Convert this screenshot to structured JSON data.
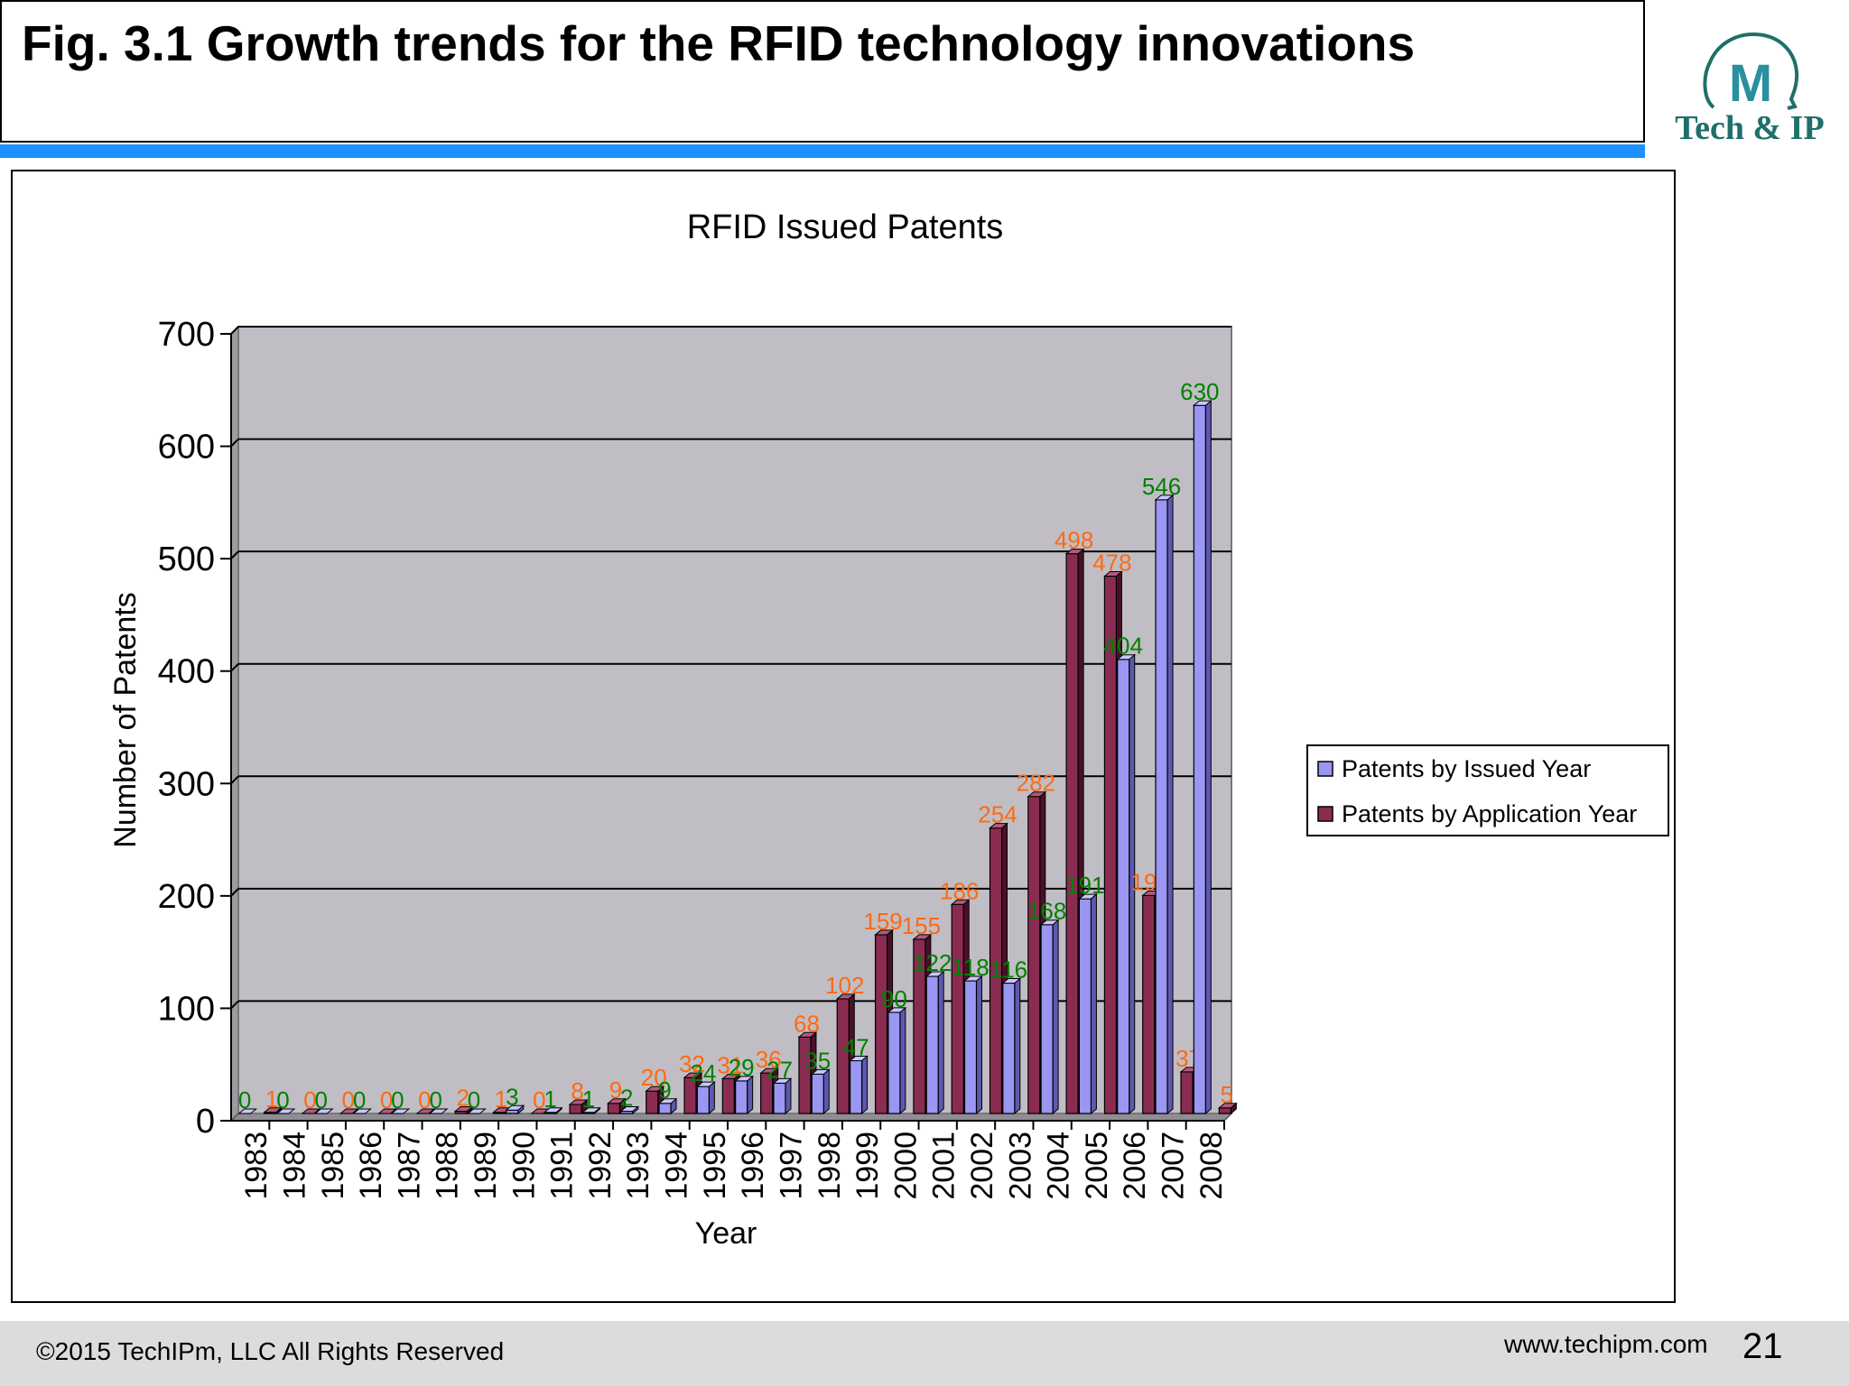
{
  "page": {
    "title": "Fig. 3.1 Growth trends for the RFID technology innovations",
    "logo_text": "Tech & IP",
    "logo_glyph": "M",
    "copyright": "©2015 TechIPm, LLC All Rights Reserved",
    "website": "www.techipm.com",
    "page_number": "21",
    "colors": {
      "accent_bar": "#1e90ff",
      "footer_bg": "#dcdcdc",
      "logo": "#1f6f6a",
      "plot_bg": "#c0bec4",
      "series_issued": "#9a96f2",
      "series_application": "#8a2c52",
      "label_issued": "#008000",
      "label_application": "#ff6a13"
    }
  },
  "chart_data": {
    "type": "bar",
    "title": "RFID Issued Patents",
    "xlabel": "Year",
    "ylabel": "Number of Patents",
    "ylim": [
      0,
      700
    ],
    "yticks": [
      0,
      100,
      200,
      300,
      400,
      500,
      600,
      700
    ],
    "grid": true,
    "legend_position": "right",
    "categories": [
      "1983",
      "1984",
      "1985",
      "1986",
      "1987",
      "1988",
      "1989",
      "1990",
      "1991",
      "1992",
      "1993",
      "1994",
      "1995",
      "1996",
      "1997",
      "1998",
      "1999",
      "2000",
      "2001",
      "2002",
      "2003",
      "2004",
      "2005",
      "2006",
      "2007",
      "2008"
    ],
    "series": [
      {
        "name": "Patents by Issued Year",
        "values": [
          0,
          0,
          0,
          0,
          0,
          0,
          0,
          3,
          1,
          1,
          2,
          9,
          24,
          29,
          27,
          35,
          47,
          90,
          122,
          118,
          116,
          168,
          191,
          404,
          546,
          630
        ]
      },
      {
        "name": "Patents by Application Year",
        "values": [
          1,
          0,
          0,
          0,
          0,
          2,
          1,
          0,
          8,
          9,
          20,
          32,
          31,
          36,
          68,
          102,
          159,
          155,
          186,
          254,
          282,
          498,
          478,
          194,
          37,
          5
        ]
      }
    ]
  }
}
